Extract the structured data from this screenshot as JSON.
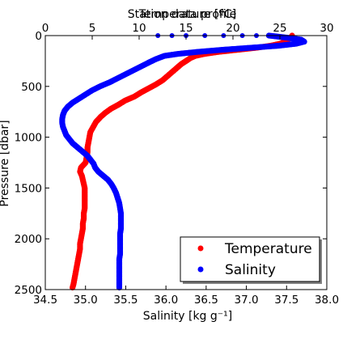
{
  "chart_data": {
    "type": "scatter",
    "title": "Station data profile",
    "top_title": "Temperature [ºC]",
    "xlabel": "Salinity [kg g⁻¹]",
    "ylabel": "Pressure [dbar]",
    "xlim": [
      34.5,
      38.0
    ],
    "x2lim": [
      0,
      30
    ],
    "ylim": [
      2500,
      0
    ],
    "xticks": [
      "34.5",
      "35.0",
      "35.5",
      "36.0",
      "36.5",
      "37.0",
      "37.5",
      "38.0"
    ],
    "x2ticks": [
      "0",
      "5",
      "10",
      "15",
      "20",
      "25",
      "30"
    ],
    "yticks": [
      "0",
      "500",
      "1000",
      "1500",
      "2000",
      "2500"
    ],
    "grid": false,
    "legend_position": "lower-right",
    "series": [
      {
        "name": "Temperature",
        "color": "#ff0000",
        "axis": "temperature",
        "points": [
          [
            26.3,
            0
          ],
          [
            26.2,
            20
          ],
          [
            25.8,
            40
          ],
          [
            25.5,
            60
          ],
          [
            25.0,
            80
          ],
          [
            24.0,
            100
          ],
          [
            22.5,
            120
          ],
          [
            20.5,
            140
          ],
          [
            18.5,
            160
          ],
          [
            17.0,
            180
          ],
          [
            16.0,
            200
          ],
          [
            15.5,
            220
          ],
          [
            15.0,
            250
          ],
          [
            14.5,
            280
          ],
          [
            14.0,
            320
          ],
          [
            13.5,
            360
          ],
          [
            13.0,
            400
          ],
          [
            12.5,
            440
          ],
          [
            11.8,
            480
          ],
          [
            11.0,
            520
          ],
          [
            10.2,
            560
          ],
          [
            9.5,
            600
          ],
          [
            8.5,
            640
          ],
          [
            7.8,
            680
          ],
          [
            7.0,
            720
          ],
          [
            6.4,
            760
          ],
          [
            5.9,
            800
          ],
          [
            5.4,
            850
          ],
          [
            5.1,
            900
          ],
          [
            4.8,
            950
          ],
          [
            4.7,
            1000
          ],
          [
            4.6,
            1050
          ],
          [
            4.5,
            1100
          ],
          [
            4.5,
            1150
          ],
          [
            4.4,
            1200
          ],
          [
            4.3,
            1250
          ],
          [
            3.8,
            1300
          ],
          [
            3.7,
            1340
          ],
          [
            3.9,
            1380
          ],
          [
            4.0,
            1420
          ],
          [
            4.1,
            1460
          ],
          [
            4.2,
            1500
          ],
          [
            4.2,
            1550
          ],
          [
            4.2,
            1600
          ],
          [
            4.2,
            1650
          ],
          [
            4.2,
            1700
          ],
          [
            4.1,
            1750
          ],
          [
            4.1,
            1800
          ],
          [
            4.0,
            1850
          ],
          [
            4.0,
            1900
          ],
          [
            3.9,
            1950
          ],
          [
            3.8,
            2000
          ],
          [
            3.7,
            2050
          ],
          [
            3.7,
            2100
          ],
          [
            3.6,
            2150
          ],
          [
            3.5,
            2200
          ],
          [
            3.4,
            2250
          ],
          [
            3.3,
            2300
          ],
          [
            3.2,
            2350
          ],
          [
            3.1,
            2400
          ],
          [
            3.0,
            2450
          ],
          [
            2.9,
            2480
          ]
        ]
      },
      {
        "name": "Salinity",
        "color": "#0000ff",
        "axis": "salinity",
        "points": [
          [
            37.28,
            0
          ],
          [
            37.5,
            20
          ],
          [
            37.68,
            40
          ],
          [
            37.72,
            60
          ],
          [
            37.62,
            80
          ],
          [
            37.4,
            100
          ],
          [
            37.05,
            120
          ],
          [
            36.7,
            140
          ],
          [
            36.4,
            160
          ],
          [
            36.15,
            180
          ],
          [
            35.98,
            200
          ],
          [
            35.88,
            230
          ],
          [
            35.8,
            260
          ],
          [
            35.7,
            300
          ],
          [
            35.6,
            340
          ],
          [
            35.5,
            380
          ],
          [
            35.4,
            420
          ],
          [
            35.3,
            460
          ],
          [
            35.18,
            500
          ],
          [
            35.08,
            540
          ],
          [
            35.0,
            580
          ],
          [
            34.92,
            620
          ],
          [
            34.84,
            660
          ],
          [
            34.78,
            700
          ],
          [
            34.74,
            740
          ],
          [
            34.72,
            780
          ],
          [
            34.71,
            820
          ],
          [
            34.71,
            860
          ],
          [
            34.72,
            900
          ],
          [
            34.74,
            940
          ],
          [
            34.76,
            980
          ],
          [
            34.8,
            1020
          ],
          [
            34.84,
            1060
          ],
          [
            34.9,
            1100
          ],
          [
            34.96,
            1140
          ],
          [
            35.02,
            1180
          ],
          [
            35.06,
            1220
          ],
          [
            35.1,
            1260
          ],
          [
            35.12,
            1300
          ],
          [
            35.16,
            1340
          ],
          [
            35.22,
            1380
          ],
          [
            35.28,
            1420
          ],
          [
            35.32,
            1460
          ],
          [
            35.35,
            1500
          ],
          [
            35.38,
            1550
          ],
          [
            35.4,
            1600
          ],
          [
            35.42,
            1650
          ],
          [
            35.43,
            1700
          ],
          [
            35.44,
            1750
          ],
          [
            35.44,
            1800
          ],
          [
            35.44,
            1850
          ],
          [
            35.44,
            1900
          ],
          [
            35.43,
            1950
          ],
          [
            35.43,
            2000
          ],
          [
            35.43,
            2050
          ],
          [
            35.43,
            2100
          ],
          [
            35.43,
            2150
          ],
          [
            35.42,
            2200
          ],
          [
            35.42,
            2250
          ],
          [
            35.42,
            2300
          ],
          [
            35.42,
            2350
          ],
          [
            35.42,
            2400
          ],
          [
            35.42,
            2450
          ],
          [
            35.42,
            2480
          ]
        ]
      }
    ],
    "top_markers_temperature": [
      12,
      13.5,
      15,
      17,
      19,
      21,
      22.5
    ]
  }
}
